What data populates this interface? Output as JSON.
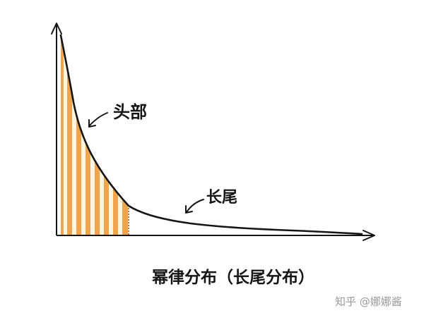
{
  "diagram": {
    "head_label": "头部",
    "tail_label": "长尾",
    "caption": "幂律分布（长尾分布）",
    "colors": {
      "ink": "#151515",
      "stripe_orange": "#f0a54c",
      "stripe_light": "#fff4df",
      "divider": "#b44a25"
    }
  },
  "watermark": {
    "text": "知乎 @娜娜酱"
  }
}
